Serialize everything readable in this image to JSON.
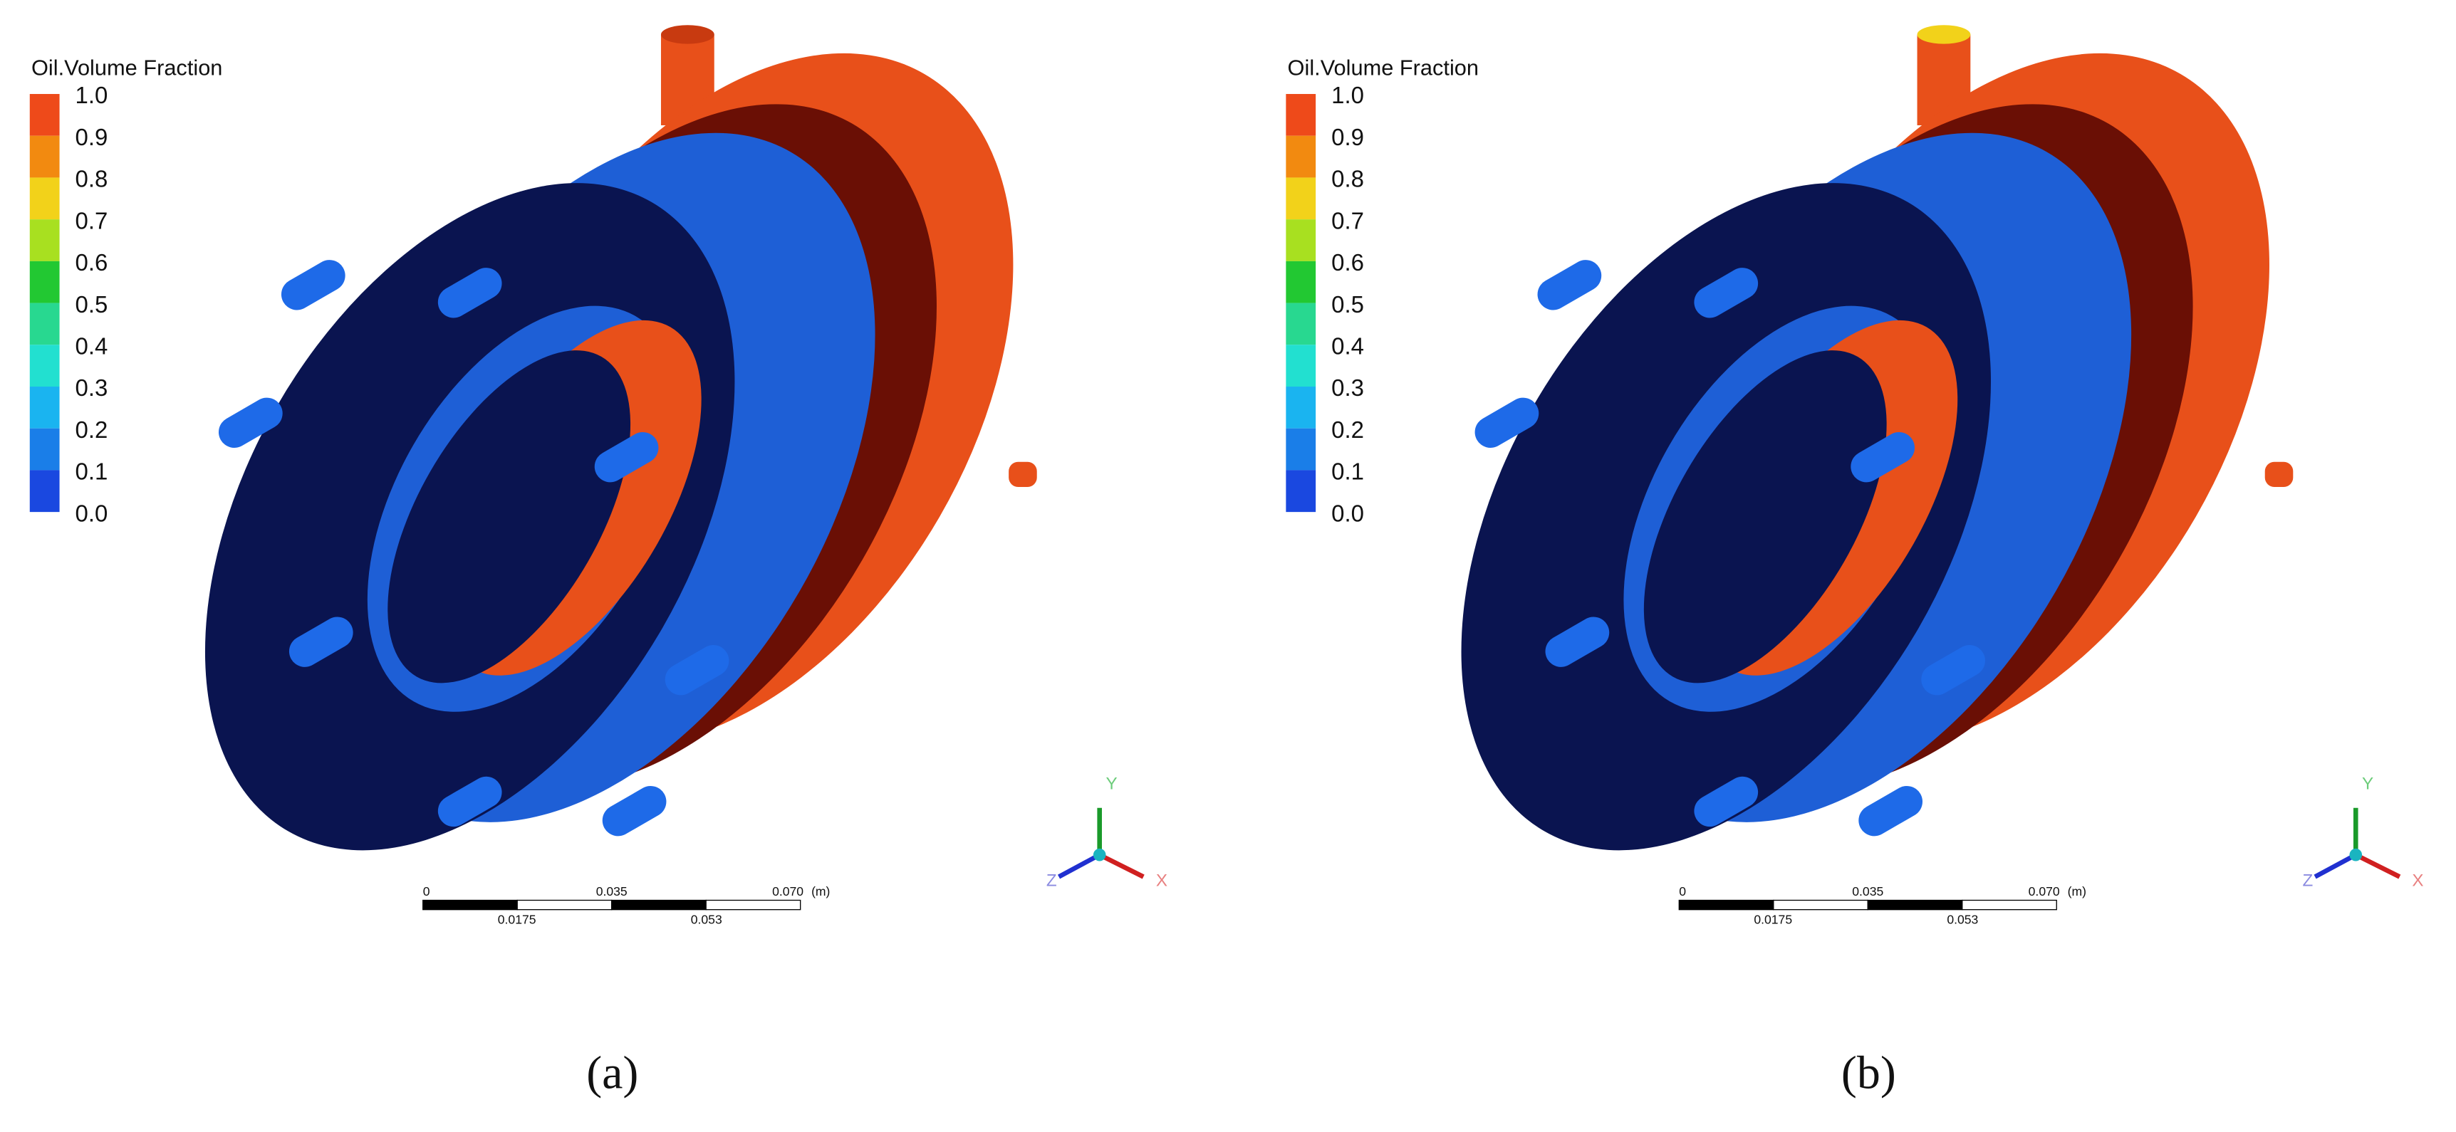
{
  "panels": [
    {
      "legend_title": "Oil.Volume Fraction",
      "legend_labels": [
        "1.0",
        "0.9",
        "0.8",
        "0.7",
        "0.6",
        "0.5",
        "0.4",
        "0.3",
        "0.2",
        "0.1",
        "0.0"
      ],
      "scale_labels_top": [
        "0",
        "0.035",
        "0.070",
        "(m)"
      ],
      "scale_labels_bottom": [
        "0.0175",
        "0.053"
      ],
      "axes": [
        "Y",
        "Z",
        "X"
      ],
      "caption": "(a)"
    },
    {
      "legend_title": "Oil.Volume Fraction",
      "legend_labels": [
        "1.0",
        "0.9",
        "0.8",
        "0.7",
        "0.6",
        "0.5",
        "0.4",
        "0.3",
        "0.2",
        "0.1",
        "0.0"
      ],
      "scale_labels_top": [
        "0",
        "0.035",
        "0.070",
        "(m)"
      ],
      "scale_labels_bottom": [
        "0.0175",
        "0.053"
      ],
      "axes": [
        "Y",
        "Z",
        "X"
      ],
      "caption": "(b)"
    }
  ]
}
